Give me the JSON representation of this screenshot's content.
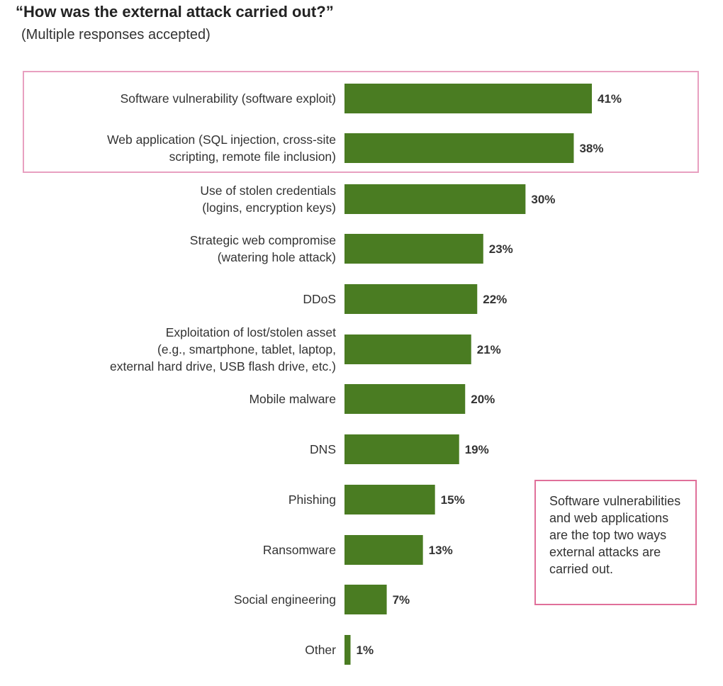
{
  "title": "“How was the external attack carried out?”",
  "subtitle": "(Multiple responses accepted)",
  "note": "Software vulnerabilities and web applications are the top two ways external attacks are carried out.",
  "colors": {
    "bar": "#4a7c22",
    "highlight_border": "#e8a0c0",
    "note_border": "#e0709a"
  },
  "chart_data": {
    "type": "bar",
    "orientation": "horizontal",
    "title": "“How was the external attack carried out?”",
    "subtitle": "(Multiple responses accepted)",
    "value_suffix": "%",
    "xlim": [
      0,
      41
    ],
    "grid": false,
    "legend": "none",
    "categories": [
      [
        "Software vulnerability (software exploit)"
      ],
      [
        "Web application (SQL injection, cross-site",
        "scripting, remote file inclusion)"
      ],
      [
        "Use of stolen credentials",
        "(logins, encryption keys)"
      ],
      [
        "Strategic web compromise",
        "(watering hole attack)"
      ],
      [
        "DDoS"
      ],
      [
        "Exploitation of lost/stolen asset",
        "(e.g., smartphone, tablet, laptop,",
        "external hard drive, USB flash drive, etc.)"
      ],
      [
        "Mobile malware"
      ],
      [
        "DNS"
      ],
      [
        "Phishing"
      ],
      [
        "Ransomware"
      ],
      [
        "Social engineering"
      ],
      [
        "Other"
      ]
    ],
    "values": [
      41,
      38,
      30,
      23,
      22,
      21,
      20,
      19,
      15,
      13,
      7,
      1
    ],
    "data_labels": [
      "41%",
      "38%",
      "30%",
      "23%",
      "22%",
      "21%",
      "20%",
      "19%",
      "15%",
      "13%",
      "7%",
      "1%"
    ]
  }
}
